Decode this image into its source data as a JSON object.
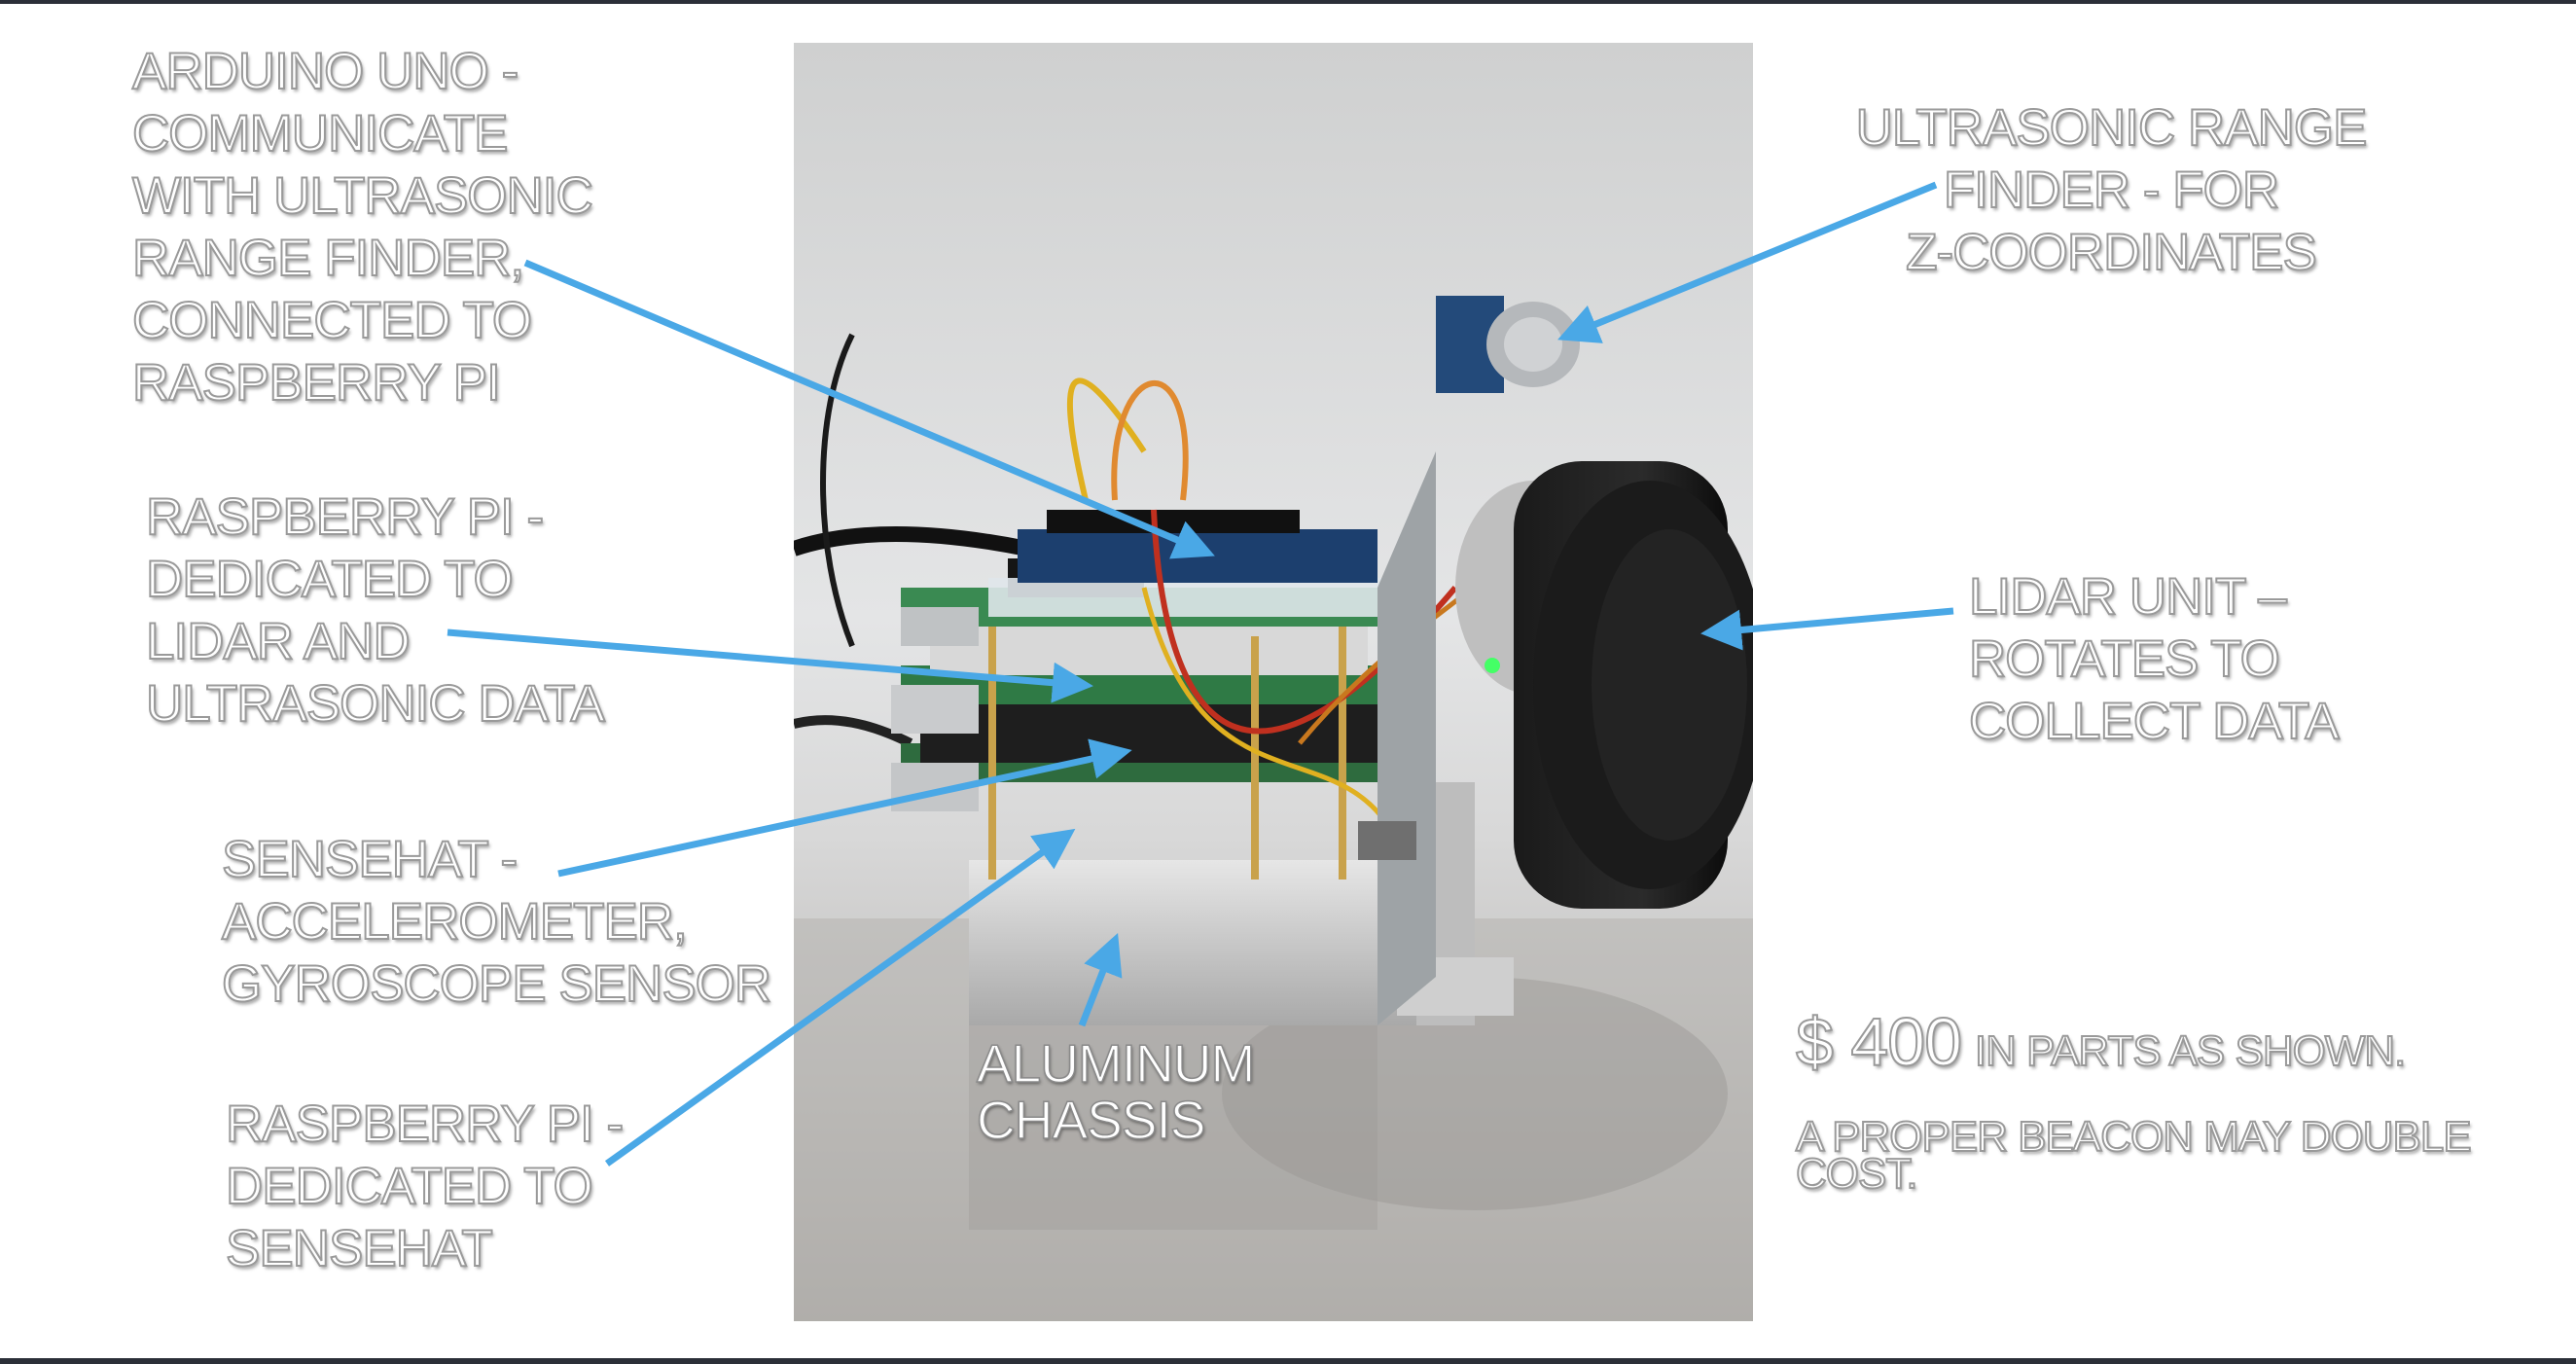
{
  "labels": {
    "arduino": [
      "ARDUINO UNO -",
      "COMMUNICATE",
      "WITH ULTRASONIC",
      "RANGE FINDER,",
      "CONNECTED TO",
      "RASPBERRY PI"
    ],
    "rpi_lidar": [
      "RASPBERRY PI -",
      "DEDICATED TO",
      "LIDAR AND",
      "ULTRASONIC DATA"
    ],
    "sensehat": [
      "SENSEHAT -",
      "ACCELEROMETER,",
      "GYROSCOPE SENSOR"
    ],
    "rpi_sensehat": [
      "RASPBERRY PI -",
      "DEDICATED TO",
      "SENSEHAT"
    ],
    "ultrasonic": [
      "ULTRASONIC RANGE",
      "FINDER - FOR",
      "Z-COORDINATES"
    ],
    "lidar": [
      "LIDAR UNIT –",
      "ROTATES TO",
      "COLLECT DATA"
    ],
    "chassis": [
      "ALUMINUM",
      "CHASSIS"
    ]
  },
  "cost": {
    "amount": "$ 400",
    "suffix": "IN PARTS AS SHOWN.",
    "note_lines": [
      "A PROPER BEACON MAY DOUBLE",
      "COST."
    ]
  },
  "colors": {
    "arrow": "#4aa8e6",
    "frame": "#2b2f38"
  }
}
